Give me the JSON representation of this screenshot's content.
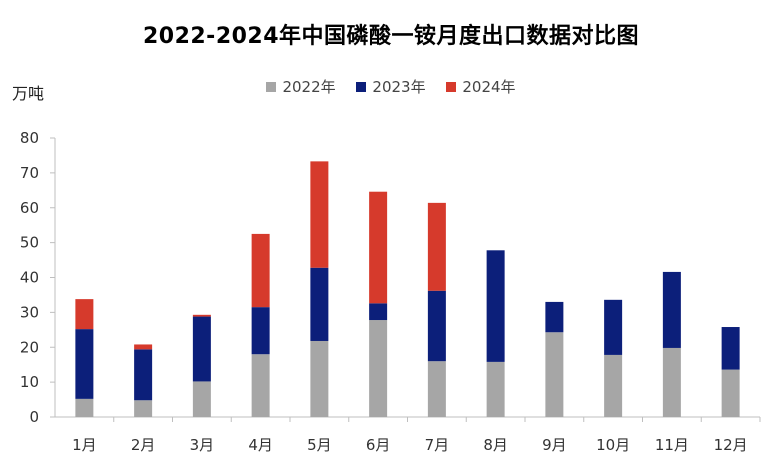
{
  "chart_data": {
    "type": "bar",
    "stacked": true,
    "title": "2022-2024年中国磷酸一铵月度出口数据对比图",
    "ylabel": "万吨",
    "xlabel": "",
    "ylim": [
      0,
      80
    ],
    "yticks": [
      0,
      10,
      20,
      30,
      40,
      50,
      60,
      70,
      80
    ],
    "categories": [
      "1月",
      "2月",
      "3月",
      "4月",
      "5月",
      "6月",
      "7月",
      "8月",
      "9月",
      "10月",
      "11月",
      "12月"
    ],
    "series": [
      {
        "name": "2022年",
        "color": "#a6a6a6",
        "values": [
          5.2,
          4.8,
          10.2,
          18.0,
          21.8,
          27.8,
          16.0,
          15.8,
          24.3,
          17.8,
          19.8,
          13.6
        ]
      },
      {
        "name": "2023年",
        "color": "#0c1f7a",
        "values": [
          20.0,
          14.6,
          18.6,
          13.5,
          21.0,
          4.8,
          20.2,
          32.0,
          8.7,
          15.8,
          21.8,
          12.2
        ]
      },
      {
        "name": "2024年",
        "color": "#d63a2c",
        "values": [
          8.6,
          1.4,
          0.5,
          21.0,
          30.5,
          32.0,
          25.2,
          null,
          null,
          null,
          null,
          null
        ]
      }
    ],
    "grid": false,
    "legend_position": "top-center"
  }
}
